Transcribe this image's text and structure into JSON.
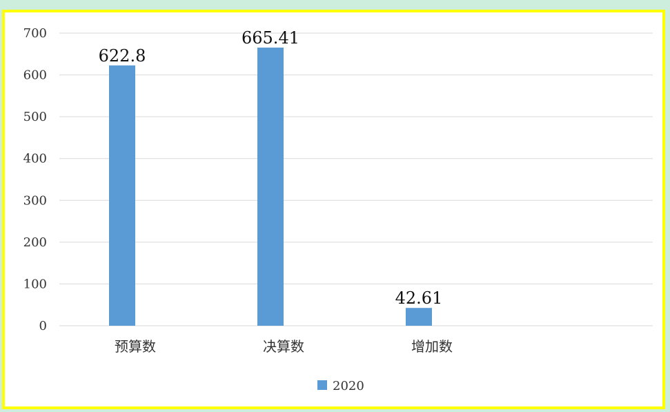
{
  "chart_data": {
    "type": "bar",
    "categories": [
      "预算数",
      "决算数",
      "增加数"
    ],
    "series": [
      {
        "name": "2020",
        "values": [
          622.8,
          665.41,
          42.61
        ]
      }
    ],
    "data_labels": [
      "622.8",
      "665.41",
      "42.61"
    ],
    "ylim": [
      0,
      700
    ],
    "yticks": [
      0,
      100,
      200,
      300,
      400,
      500,
      600,
      700
    ],
    "grid": true,
    "legend_position": "bottom",
    "colors": {
      "bar": "#5b9bd5",
      "grid": "#d9d9d9",
      "frame": "#ffff00",
      "background": "#cdeedd"
    }
  }
}
